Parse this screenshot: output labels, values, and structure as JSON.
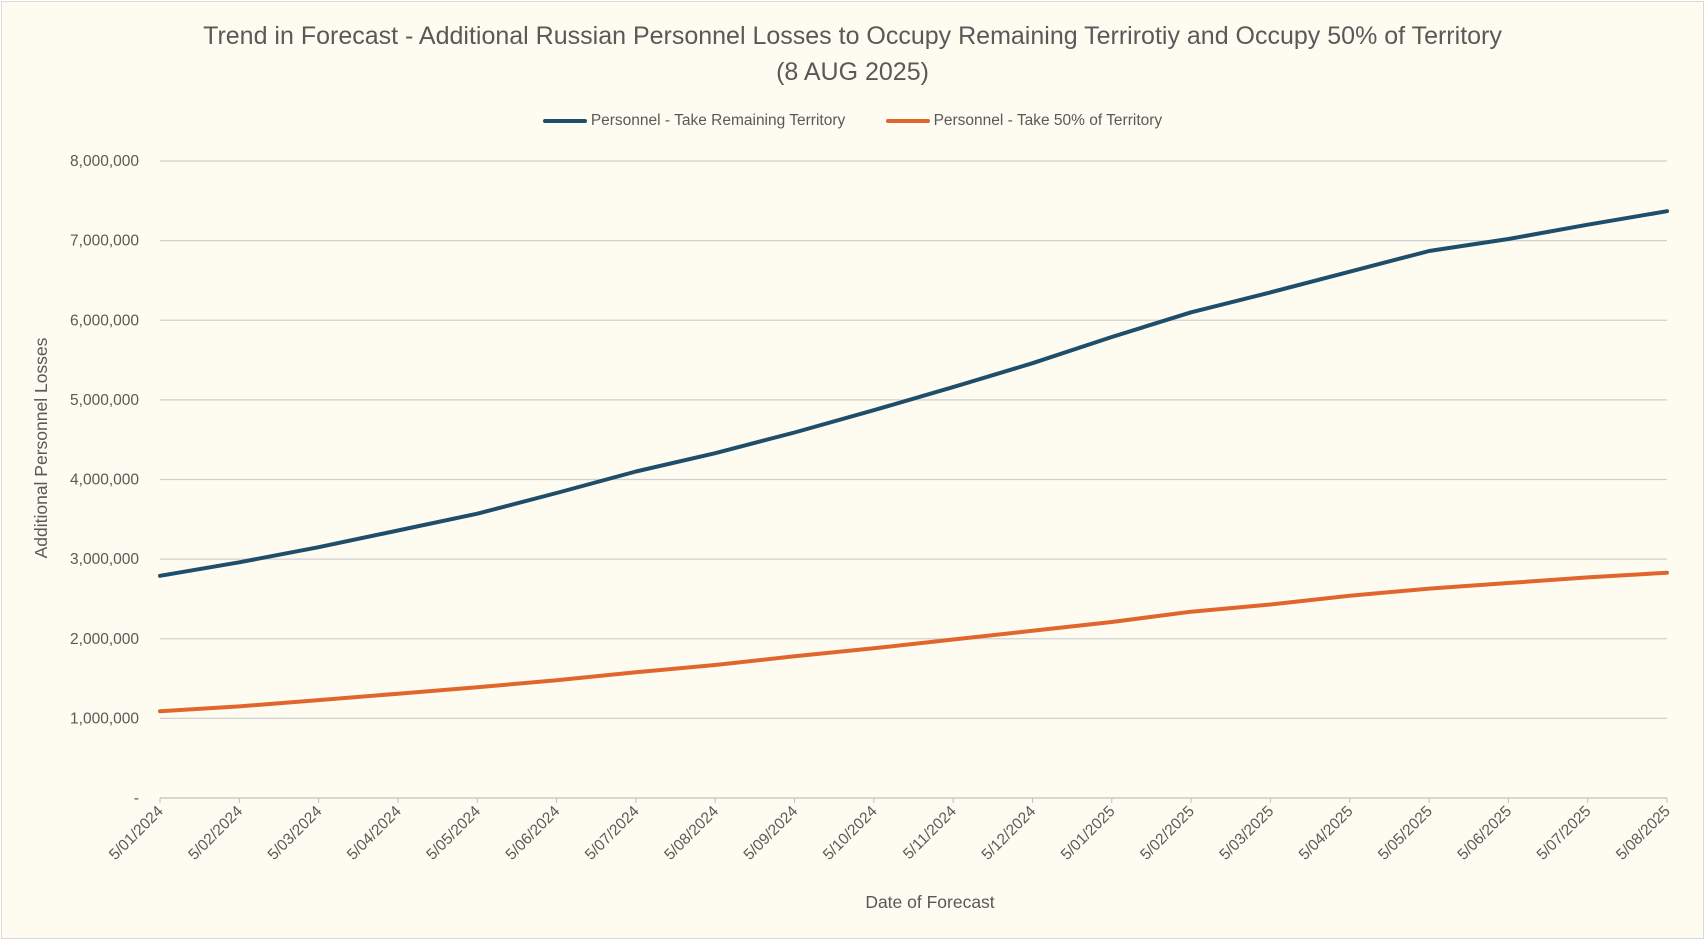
{
  "chart_data": {
    "type": "line",
    "title": "Trend in Forecast - Additional Russian Personnel Losses to Occupy Remaining Terrirotiy and Occupy 50% of Territory",
    "subtitle": "(8 AUG 2025)",
    "xlabel": "Date of Forecast",
    "ylabel": "Additional Personnel Losses",
    "x_tick_labels": [
      "5/01/2024",
      "5/02/2024",
      "5/03/2024",
      "5/04/2024",
      "5/05/2024",
      "5/06/2024",
      "5/07/2024",
      "5/08/2024",
      "5/09/2024",
      "5/10/2024",
      "5/11/2024",
      "5/12/2024",
      "5/01/2025",
      "5/02/2025",
      "5/03/2025",
      "5/04/2025",
      "5/05/2025",
      "5/06/2025",
      "5/07/2025",
      "5/08/2025"
    ],
    "y_tick_labels": [
      "-",
      "1,000,000",
      "2,000,000",
      "3,000,000",
      "4,000,000",
      "5,000,000",
      "6,000,000",
      "7,000,000",
      "8,000,000"
    ],
    "ylim": [
      0,
      8000000
    ],
    "grid": true,
    "legend_position": "top",
    "series": [
      {
        "name": "Personnel - Take Remaining Territory",
        "color": "#1f4e6b",
        "values": [
          2790000,
          2960000,
          3150000,
          3360000,
          3570000,
          3830000,
          4100000,
          4330000,
          4590000,
          4870000,
          5160000,
          5460000,
          5790000,
          6100000,
          6350000,
          6610000,
          6870000,
          7020000,
          7200000,
          7370000
        ]
      },
      {
        "name": "Personnel - Take 50% of Territory",
        "color": "#e0662b",
        "values": [
          1090000,
          1150000,
          1230000,
          1310000,
          1390000,
          1480000,
          1580000,
          1670000,
          1780000,
          1880000,
          1990000,
          2100000,
          2210000,
          2340000,
          2430000,
          2540000,
          2630000,
          2700000,
          2770000,
          2830000
        ]
      }
    ]
  }
}
